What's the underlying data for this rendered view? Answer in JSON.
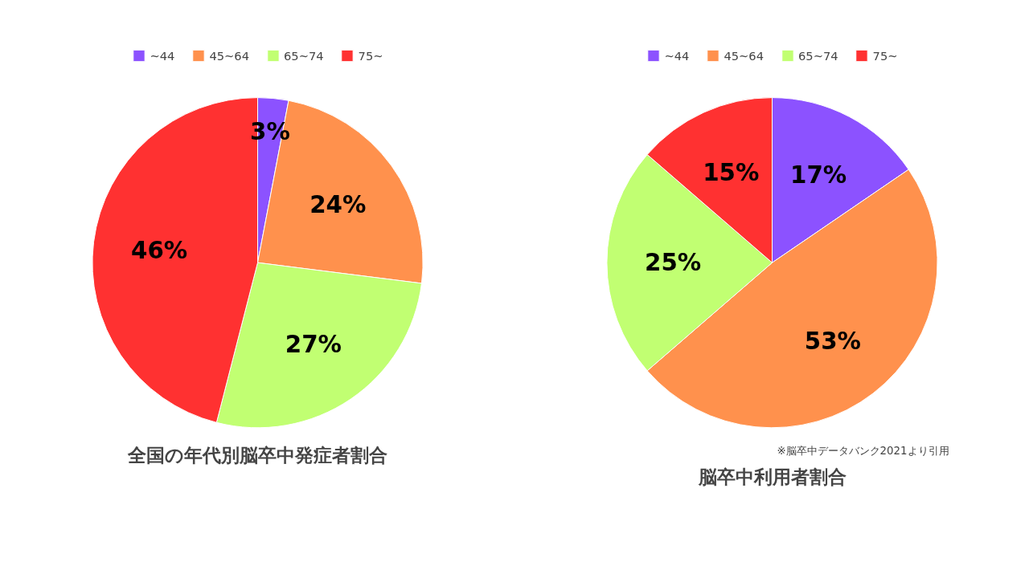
{
  "chart_data": [
    {
      "type": "pie",
      "title": "全国の年代別脳卒中発症者割合",
      "categories": [
        "~44",
        "45~64",
        "65~74",
        "75~"
      ],
      "values": [
        3,
        24,
        27,
        46
      ],
      "colors": [
        "#8c52ff",
        "#ff914d",
        "#c1ff72",
        "#ff3131"
      ],
      "value_labels": [
        "3%",
        "24%",
        "27%",
        "46%"
      ],
      "legend": "top"
    },
    {
      "type": "pie",
      "title": "脳卒中利用者割合",
      "categories": [
        "~44",
        "45~64",
        "65~74",
        "75~"
      ],
      "values": [
        17,
        53,
        25,
        15
      ],
      "colors": [
        "#8c52ff",
        "#ff914d",
        "#c1ff72",
        "#ff3131"
      ],
      "value_labels": [
        "17%",
        "53%",
        "25%",
        "15%"
      ],
      "legend": "top",
      "annotations": [
        "※脳卒中データバンク2021より引用"
      ]
    }
  ]
}
